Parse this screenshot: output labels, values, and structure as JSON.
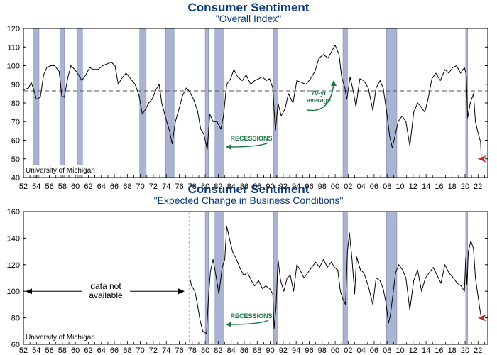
{
  "colors": {
    "title": "#0b3a78",
    "recession": "#aab4d2",
    "line": "#000000",
    "annotation_green": "#1e7a44",
    "marker_red": "#cc2222"
  },
  "chart_data": [
    {
      "type": "line",
      "title": "Consumer Sentiment",
      "subtitle": "\"Overall Index\"",
      "source": "University of Michigan",
      "x_tick_labels": [
        "52",
        "54",
        "56",
        "58",
        "60",
        "62",
        "64",
        "66",
        "68",
        "70",
        "72",
        "74",
        "76",
        "78",
        "80",
        "82",
        "84",
        "86",
        "88",
        "90",
        "92",
        "94",
        "96",
        "98",
        "00",
        "02",
        "04",
        "06",
        "08",
        "10",
        "12",
        "14",
        "16",
        "18",
        "20",
        "22"
      ],
      "xlim": [
        1952,
        2023.5
      ],
      "ylim": [
        40,
        120
      ],
      "y_ticks": [
        40,
        50,
        60,
        70,
        80,
        90,
        100,
        110,
        120
      ],
      "reference_line": {
        "value": 86.5,
        "label": "70-yr\naverage",
        "style": "dashed"
      },
      "recession_label": "RECESSIONS",
      "recessions": [
        [
          1953.5,
          1954.4
        ],
        [
          1957.6,
          1958.3
        ],
        [
          1960.3,
          1961.1
        ],
        [
          1969.9,
          1970.9
        ],
        [
          1973.9,
          1975.2
        ],
        [
          1980.0,
          1980.5
        ],
        [
          1981.5,
          1982.9
        ],
        [
          1990.5,
          1991.2
        ],
        [
          2001.2,
          2001.9
        ],
        [
          2007.9,
          2009.5
        ],
        [
          2020.1,
          2020.4
        ]
      ],
      "series": [
        {
          "values": [
            [
              1952.0,
              87
            ],
            [
              1952.8,
              88
            ],
            [
              1953.2,
              91
            ],
            [
              1953.6,
              87
            ],
            [
              1954.0,
              82
            ],
            [
              1954.6,
              83
            ],
            [
              1955.1,
              95
            ],
            [
              1955.6,
              99
            ],
            [
              1956.2,
              100
            ],
            [
              1956.8,
              100
            ],
            [
              1957.5,
              97
            ],
            [
              1957.9,
              84
            ],
            [
              1958.3,
              83
            ],
            [
              1958.8,
              93
            ],
            [
              1959.3,
              100
            ],
            [
              1959.9,
              98
            ],
            [
              1960.5,
              95
            ],
            [
              1961.0,
              92
            ],
            [
              1961.6,
              95
            ],
            [
              1962.2,
              99
            ],
            [
              1962.8,
              98
            ],
            [
              1963.5,
              98
            ],
            [
              1964.2,
              100
            ],
            [
              1964.9,
              101
            ],
            [
              1965.5,
              102
            ],
            [
              1966.1,
              100
            ],
            [
              1966.6,
              90
            ],
            [
              1967.1,
              93
            ],
            [
              1967.8,
              96
            ],
            [
              1968.5,
              93
            ],
            [
              1969.2,
              90
            ],
            [
              1969.8,
              84
            ],
            [
              1970.3,
              74
            ],
            [
              1970.7,
              76
            ],
            [
              1971.3,
              80
            ],
            [
              1971.8,
              82
            ],
            [
              1972.4,
              87
            ],
            [
              1972.9,
              90
            ],
            [
              1973.3,
              80
            ],
            [
              1973.9,
              72
            ],
            [
              1974.5,
              65
            ],
            [
              1974.9,
              58
            ],
            [
              1975.4,
              70
            ],
            [
              1975.9,
              76
            ],
            [
              1976.5,
              84
            ],
            [
              1977.1,
              88
            ],
            [
              1977.6,
              86
            ],
            [
              1978.2,
              82
            ],
            [
              1978.8,
              76
            ],
            [
              1979.3,
              66
            ],
            [
              1979.8,
              63
            ],
            [
              1980.3,
              55
            ],
            [
              1980.7,
              74
            ],
            [
              1981.2,
              70
            ],
            [
              1981.8,
              70
            ],
            [
              1982.4,
              66
            ],
            [
              1982.8,
              73
            ],
            [
              1983.3,
              90
            ],
            [
              1983.9,
              93
            ],
            [
              1984.4,
              98
            ],
            [
              1985.0,
              94
            ],
            [
              1985.7,
              92
            ],
            [
              1986.3,
              95
            ],
            [
              1987.0,
              90
            ],
            [
              1987.6,
              92
            ],
            [
              1988.2,
              93
            ],
            [
              1988.8,
              94
            ],
            [
              1989.4,
              92
            ],
            [
              1989.9,
              93
            ],
            [
              1990.4,
              88
            ],
            [
              1990.8,
              65
            ],
            [
              1991.2,
              80
            ],
            [
              1991.7,
              73
            ],
            [
              1992.3,
              77
            ],
            [
              1992.8,
              85
            ],
            [
              1993.5,
              80
            ],
            [
              1994.1,
              92
            ],
            [
              1994.8,
              91
            ],
            [
              1995.5,
              90
            ],
            [
              1996.2,
              93
            ],
            [
              1996.9,
              97
            ],
            [
              1997.5,
              104
            ],
            [
              1998.2,
              106
            ],
            [
              1998.9,
              104
            ],
            [
              1999.5,
              108
            ],
            [
              2000.0,
              111
            ],
            [
              2000.6,
              106
            ],
            [
              2001.0,
              94
            ],
            [
              2001.5,
              88
            ],
            [
              2001.8,
              82
            ],
            [
              2002.3,
              94
            ],
            [
              2002.8,
              86
            ],
            [
              2003.2,
              78
            ],
            [
              2003.8,
              93
            ],
            [
              2004.4,
              92
            ],
            [
              2005.1,
              88
            ],
            [
              2005.8,
              76
            ],
            [
              2006.3,
              88
            ],
            [
              2006.9,
              92
            ],
            [
              2007.4,
              88
            ],
            [
              2007.9,
              76
            ],
            [
              2008.4,
              62
            ],
            [
              2008.8,
              56
            ],
            [
              2009.2,
              62
            ],
            [
              2009.7,
              70
            ],
            [
              2010.3,
              73
            ],
            [
              2010.9,
              70
            ],
            [
              2011.5,
              57
            ],
            [
              2012.1,
              75
            ],
            [
              2012.7,
              80
            ],
            [
              2013.2,
              78
            ],
            [
              2013.8,
              75
            ],
            [
              2014.3,
              82
            ],
            [
              2014.9,
              93
            ],
            [
              2015.5,
              96
            ],
            [
              2016.2,
              92
            ],
            [
              2016.9,
              98
            ],
            [
              2017.5,
              96
            ],
            [
              2018.1,
              99
            ],
            [
              2018.7,
              100
            ],
            [
              2019.3,
              96
            ],
            [
              2019.9,
              99
            ],
            [
              2020.2,
              95
            ],
            [
              2020.4,
              72
            ],
            [
              2020.8,
              80
            ],
            [
              2021.3,
              85
            ],
            [
              2021.6,
              70
            ],
            [
              2022.0,
              64
            ],
            [
              2022.4,
              59
            ],
            [
              2022.5,
              50
            ]
          ]
        }
      ]
    },
    {
      "type": "line",
      "title": "Consumer Sentiment",
      "subtitle": "\"Expected Change in Business Conditions\"",
      "source": "University of Michigan",
      "x_tick_labels": [
        "52",
        "54",
        "56",
        "58",
        "60",
        "62",
        "64",
        "66",
        "68",
        "70",
        "72",
        "74",
        "76",
        "78",
        "80",
        "82",
        "84",
        "86",
        "88",
        "90",
        "92",
        "94",
        "96",
        "98",
        "00",
        "02",
        "04",
        "06",
        "08",
        "10",
        "12",
        "14",
        "16",
        "18",
        "20",
        "22"
      ],
      "xlim": [
        1952,
        2023.5
      ],
      "ylim": [
        60,
        160
      ],
      "y_ticks": [
        60,
        80,
        100,
        120,
        140,
        160
      ],
      "recession_label": "RECESSIONS",
      "no_data_label": "data not\navailable",
      "no_data_range": [
        1952,
        1977.5
      ],
      "recessions": [
        [
          1980.0,
          1980.5
        ],
        [
          1981.5,
          1982.9
        ],
        [
          1990.5,
          1991.2
        ],
        [
          2001.2,
          2001.9
        ],
        [
          2007.9,
          2009.5
        ],
        [
          2020.1,
          2020.4
        ]
      ],
      "series": [
        {
          "values": [
            [
              1977.6,
              110
            ],
            [
              1977.9,
              104
            ],
            [
              1978.4,
              100
            ],
            [
              1978.8,
              90
            ],
            [
              1979.2,
              78
            ],
            [
              1979.6,
              70
            ],
            [
              1980.2,
              68
            ],
            [
              1980.5,
              96
            ],
            [
              1980.8,
              115
            ],
            [
              1981.2,
              124
            ],
            [
              1981.7,
              110
            ],
            [
              1982.1,
              98
            ],
            [
              1982.6,
              118
            ],
            [
              1983.0,
              124
            ],
            [
              1983.3,
              149
            ],
            [
              1983.7,
              140
            ],
            [
              1984.2,
              130
            ],
            [
              1984.8,
              124
            ],
            [
              1985.3,
              118
            ],
            [
              1985.9,
              112
            ],
            [
              1986.5,
              114
            ],
            [
              1987.1,
              108
            ],
            [
              1987.6,
              104
            ],
            [
              1988.2,
              108
            ],
            [
              1988.8,
              102
            ],
            [
              1989.3,
              104
            ],
            [
              1989.9,
              102
            ],
            [
              1990.4,
              98
            ],
            [
              1990.6,
              72
            ],
            [
              1990.9,
              88
            ],
            [
              1991.2,
              124
            ],
            [
              1991.6,
              108
            ],
            [
              1992.1,
              100
            ],
            [
              1992.6,
              110
            ],
            [
              1993.1,
              112
            ],
            [
              1993.6,
              100
            ],
            [
              1994.1,
              120
            ],
            [
              1994.6,
              116
            ],
            [
              1995.2,
              110
            ],
            [
              1995.8,
              114
            ],
            [
              1996.4,
              118
            ],
            [
              1997.0,
              122
            ],
            [
              1997.6,
              118
            ],
            [
              1998.2,
              124
            ],
            [
              1998.8,
              118
            ],
            [
              1999.4,
              122
            ],
            [
              1999.9,
              118
            ],
            [
              2000.4,
              116
            ],
            [
              2000.8,
              100
            ],
            [
              2001.2,
              94
            ],
            [
              2001.6,
              90
            ],
            [
              2001.9,
              130
            ],
            [
              2002.2,
              144
            ],
            [
              2002.6,
              124
            ],
            [
              2003.0,
              98
            ],
            [
              2003.3,
              126
            ],
            [
              2003.9,
              116
            ],
            [
              2004.4,
              114
            ],
            [
              2005.1,
              104
            ],
            [
              2005.8,
              90
            ],
            [
              2006.3,
              110
            ],
            [
              2006.9,
              108
            ],
            [
              2007.4,
              102
            ],
            [
              2007.8,
              92
            ],
            [
              2008.2,
              76
            ],
            [
              2008.5,
              82
            ],
            [
              2008.9,
              98
            ],
            [
              2009.3,
              114
            ],
            [
              2009.8,
              120
            ],
            [
              2010.4,
              116
            ],
            [
              2010.9,
              110
            ],
            [
              2011.5,
              86
            ],
            [
              2012.1,
              108
            ],
            [
              2012.7,
              116
            ],
            [
              2013.3,
              100
            ],
            [
              2013.9,
              110
            ],
            [
              2014.5,
              114
            ],
            [
              2015.1,
              118
            ],
            [
              2015.7,
              112
            ],
            [
              2016.3,
              106
            ],
            [
              2016.9,
              120
            ],
            [
              2017.5,
              114
            ],
            [
              2018.2,
              110
            ],
            [
              2018.8,
              106
            ],
            [
              2019.4,
              104
            ],
            [
              2019.9,
              100
            ],
            [
              2020.1,
              125
            ],
            [
              2020.3,
              105
            ],
            [
              2020.5,
              130
            ],
            [
              2020.9,
              138
            ],
            [
              2021.3,
              132
            ],
            [
              2021.6,
              110
            ],
            [
              2022.0,
              96
            ],
            [
              2022.3,
              86
            ],
            [
              2022.5,
              80
            ]
          ]
        }
      ]
    }
  ]
}
